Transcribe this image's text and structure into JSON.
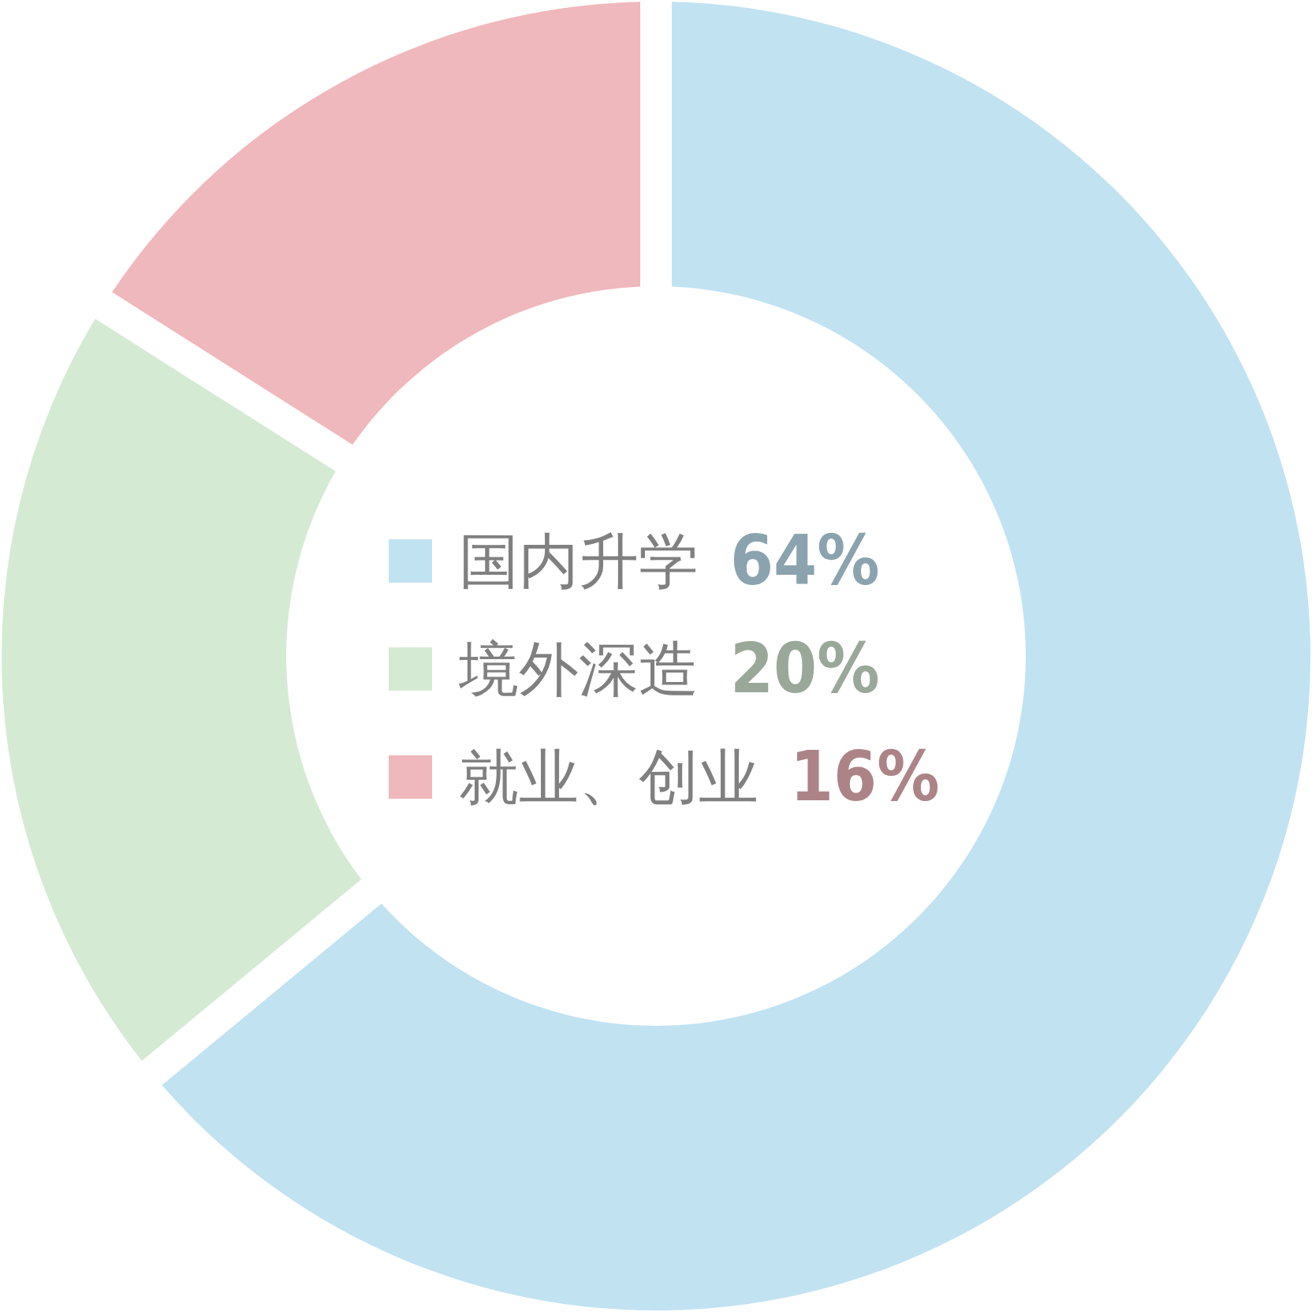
{
  "chart_data": {
    "type": "donut",
    "categories": [
      "国内升学",
      "境外深造",
      "就业、创业"
    ],
    "values": [
      64,
      20,
      16
    ],
    "colors": [
      "#c1e2f1",
      "#d5ead3",
      "#efb8bc"
    ],
    "value_labels": [
      "64%",
      "20%",
      "16%"
    ],
    "legend": "center"
  }
}
